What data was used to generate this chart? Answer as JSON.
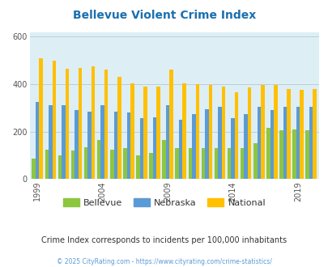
{
  "title": "Bellevue Violent Crime Index",
  "title_color": "#1a6faf",
  "years": [
    1999,
    2000,
    2001,
    2002,
    2003,
    2004,
    2005,
    2006,
    2007,
    2008,
    2009,
    2010,
    2011,
    2012,
    2013,
    2014,
    2015,
    2016,
    2017,
    2018,
    2019,
    2020
  ],
  "xtick_years": [
    1999,
    2004,
    2009,
    2014,
    2019
  ],
  "bellevue": [
    85,
    125,
    100,
    120,
    135,
    165,
    125,
    130,
    100,
    110,
    165,
    130,
    130,
    130,
    130,
    130,
    130,
    150,
    215,
    205,
    210,
    205
  ],
  "nebraska": [
    325,
    310,
    310,
    290,
    285,
    310,
    285,
    280,
    255,
    260,
    310,
    250,
    275,
    295,
    305,
    255,
    275,
    305,
    290,
    305,
    305,
    305
  ],
  "national": [
    510,
    500,
    465,
    470,
    475,
    460,
    430,
    405,
    390,
    390,
    460,
    405,
    400,
    395,
    390,
    365,
    385,
    395,
    395,
    380,
    375,
    380
  ],
  "ylim": [
    0,
    620
  ],
  "yticks": [
    0,
    200,
    400,
    600
  ],
  "bar_width": 0.28,
  "bellevue_color": "#8dc63f",
  "nebraska_color": "#5b9bd5",
  "national_color": "#ffc000",
  "bg_color": "#deeef5",
  "grid_color": "#b0ccd8",
  "subtitle": "Crime Index corresponds to incidents per 100,000 inhabitants",
  "subtitle_color": "#333333",
  "copyright": "© 2025 CityRating.com - https://www.cityrating.com/crime-statistics/",
  "copyright_color": "#5b9bd5",
  "legend_labels": [
    "Bellevue",
    "Nebraska",
    "National"
  ]
}
